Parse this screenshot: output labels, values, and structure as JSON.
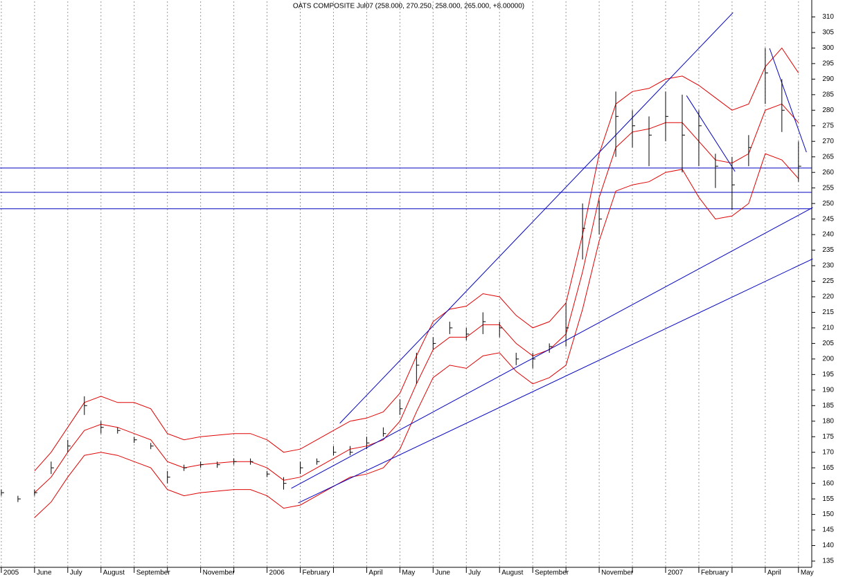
{
  "chart_data": {
    "type": "ohlc",
    "title": "OATS COMPOSITE Jul07 (258.000, 270.250, 258.000, 265.000, +8.00000)",
    "xlim": [
      -0.04,
      24.4
    ],
    "ylim": [
      133,
      315
    ],
    "xticks": [
      {
        "value": 0,
        "label": "2005"
      },
      {
        "value": 1,
        "label": "June"
      },
      {
        "value": 2,
        "label": "July"
      },
      {
        "value": 3,
        "label": "August"
      },
      {
        "value": 4,
        "label": "September"
      },
      {
        "value": 5,
        "label": null
      },
      {
        "value": 6,
        "label": "November"
      },
      {
        "value": 7,
        "label": null
      },
      {
        "value": 8,
        "label": "2006"
      },
      {
        "value": 9,
        "label": "February"
      },
      {
        "value": 10,
        "label": null
      },
      {
        "value": 11,
        "label": "April"
      },
      {
        "value": 12,
        "label": "May"
      },
      {
        "value": 13,
        "label": "June"
      },
      {
        "value": 14,
        "label": "July"
      },
      {
        "value": 15,
        "label": "August"
      },
      {
        "value": 16,
        "label": "September"
      },
      {
        "value": 17,
        "label": null
      },
      {
        "value": 18,
        "label": "November"
      },
      {
        "value": 19,
        "label": null
      },
      {
        "value": 20,
        "label": "2007"
      },
      {
        "value": 21,
        "label": "February"
      },
      {
        "value": 22,
        "label": null
      },
      {
        "value": 23,
        "label": "April"
      },
      {
        "value": 24,
        "label": "May"
      }
    ],
    "yticks": [
      135,
      140,
      145,
      150,
      155,
      160,
      165,
      170,
      175,
      180,
      185,
      190,
      195,
      200,
      205,
      210,
      215,
      220,
      225,
      230,
      235,
      240,
      245,
      250,
      255,
      260,
      265,
      270,
      275,
      280,
      285,
      290,
      295,
      300,
      305,
      310
    ],
    "grid": true,
    "x": [
      0,
      0.5,
      1,
      1.5,
      2,
      2.5,
      3,
      3.5,
      4,
      4.5,
      5,
      5.5,
      6,
      6.5,
      7,
      7.5,
      8,
      8.5,
      9,
      9.5,
      10,
      10.5,
      11,
      11.5,
      12,
      12.5,
      13,
      13.5,
      14,
      14.5,
      15,
      15.5,
      16,
      16.5,
      17,
      17.5,
      18,
      18.5,
      19,
      19.5,
      20,
      20.5,
      21,
      21.5,
      22,
      22.5,
      23,
      23.5,
      24
    ],
    "bar_color": "#000000",
    "high": [
      158,
      156,
      158,
      167,
      174,
      188,
      180,
      178,
      175,
      173,
      164,
      166,
      167,
      167,
      168,
      168,
      164,
      162,
      167,
      168,
      172,
      172,
      175,
      178,
      187,
      202,
      207,
      212,
      210,
      215,
      212,
      202,
      202,
      205,
      218,
      250,
      251,
      286,
      280,
      278,
      286,
      285,
      280,
      266,
      265,
      272,
      300,
      290,
      270
    ],
    "low": [
      156,
      154,
      156,
      163,
      170,
      182,
      176,
      176,
      173,
      171,
      160,
      164,
      165,
      165,
      166,
      166,
      162,
      158,
      163,
      166,
      169,
      169,
      171,
      175,
      182,
      192,
      203,
      208,
      206,
      208,
      207,
      198,
      197,
      202,
      204,
      232,
      240,
      265,
      268,
      262,
      270,
      260,
      262,
      255,
      248,
      262,
      282,
      273,
      257
    ],
    "close": [
      157,
      155,
      157,
      165,
      172,
      185,
      178,
      177,
      174,
      172,
      162,
      165,
      166,
      166,
      167,
      167,
      163,
      160,
      165,
      167,
      170,
      170,
      173,
      176,
      184,
      198,
      205,
      210,
      208,
      212,
      210,
      200,
      200,
      204,
      210,
      242,
      245,
      278,
      275,
      272,
      278,
      272,
      275,
      262,
      256,
      268,
      292,
      280,
      262
    ],
    "envelope_color": "#e00000",
    "envelope": [
      [
        null,
        null,
        164,
        170,
        178,
        186,
        188,
        186,
        186,
        184,
        176,
        174,
        175,
        175.5,
        176,
        176,
        174,
        170,
        171,
        174,
        177,
        180,
        181,
        183,
        189,
        201,
        212,
        216,
        217,
        221,
        220,
        214,
        210,
        212,
        218,
        240,
        266,
        282,
        286,
        287,
        290,
        291,
        288,
        284,
        280,
        282,
        294,
        300,
        292
      ],
      [
        null,
        null,
        157,
        162,
        170,
        177,
        179,
        178,
        176,
        174,
        167,
        165,
        166,
        166.5,
        167,
        167,
        165,
        161,
        162,
        165,
        168,
        171,
        172,
        174,
        180,
        192,
        203,
        207,
        207,
        211,
        211,
        205,
        201,
        203,
        208,
        228,
        252,
        268,
        273,
        274,
        276,
        276,
        270,
        264,
        263,
        266,
        280,
        282,
        276
      ],
      [
        null,
        null,
        149,
        154,
        162,
        169,
        170,
        169,
        167,
        165,
        158,
        156,
        157,
        157.5,
        158,
        158,
        156,
        152,
        153,
        156,
        159,
        162,
        163,
        165,
        171,
        183,
        194,
        198,
        197,
        201,
        202,
        196,
        192,
        194,
        198,
        216,
        238,
        254,
        256,
        257,
        260,
        261,
        252,
        245,
        246,
        250,
        266,
        264,
        258
      ]
    ],
    "line_color": "#0000c0",
    "trendlines": [
      {
        "x": [
          10.19,
          22.03
        ],
        "values": [
          179.3,
          311.4
        ]
      },
      {
        "x": [
          8.73,
          24.43
        ],
        "values": [
          158.4,
          248.7
        ]
      },
      {
        "x": [
          8.94,
          24.43
        ],
        "values": [
          153.7,
          232.2
        ]
      },
      {
        "x": [
          20.63,
          22.09
        ],
        "values": [
          284.7,
          260.3
        ]
      },
      {
        "x": [
          23.13,
          24.24
        ],
        "values": [
          299.9,
          266.5
        ]
      }
    ],
    "hlines": [
      261.4,
      253.6,
      248.3
    ]
  }
}
